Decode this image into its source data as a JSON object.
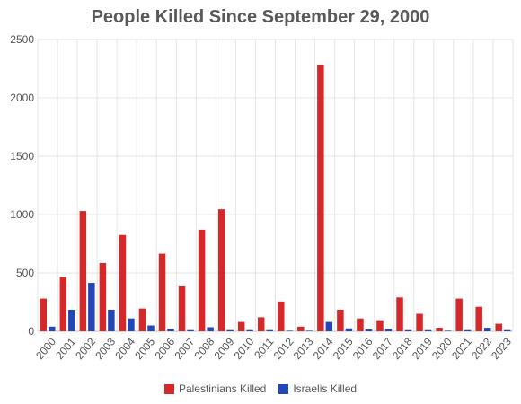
{
  "chart_data": {
    "type": "bar",
    "title": "People Killed Since September 29, 2000",
    "xlabel": "",
    "ylabel": "",
    "ylim": [
      0,
      2500
    ],
    "yticks": [
      0,
      500,
      1000,
      1500,
      2000,
      2500
    ],
    "grid": true,
    "legend_position": "bottom",
    "categories": [
      "2000",
      "2001",
      "2002",
      "2003",
      "2004",
      "2005",
      "2006",
      "2007",
      "2008",
      "2009",
      "2010",
      "2011",
      "2012",
      "2013",
      "2014",
      "2015",
      "2016",
      "2017",
      "2018",
      "2019",
      "2020",
      "2021",
      "2022",
      "2023"
    ],
    "series": [
      {
        "name": "Palestinians Killed",
        "color": "#d62828",
        "values": [
          280,
          465,
          1030,
          585,
          825,
          195,
          665,
          385,
          870,
          1045,
          80,
          120,
          255,
          40,
          2285,
          185,
          110,
          95,
          290,
          150,
          30,
          280,
          210,
          65
        ]
      },
      {
        "name": "Israelis Killed",
        "color": "#2447b8",
        "values": [
          40,
          185,
          415,
          185,
          110,
          50,
          20,
          10,
          35,
          10,
          10,
          10,
          5,
          5,
          80,
          25,
          15,
          20,
          10,
          10,
          5,
          10,
          30,
          10
        ]
      }
    ]
  }
}
